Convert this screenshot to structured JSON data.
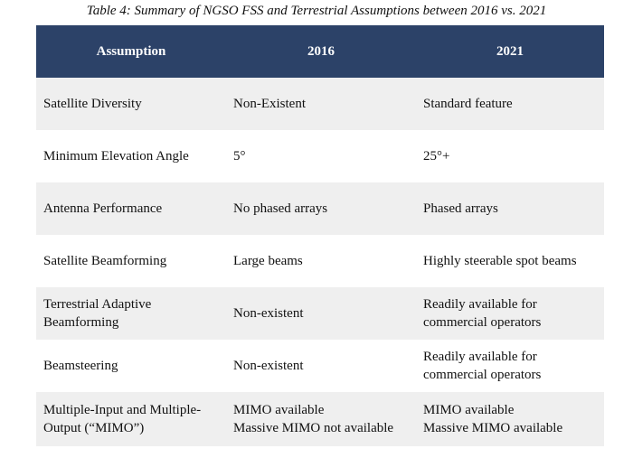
{
  "caption": "Table 4:  Summary of NGSO FSS and Terrestrial Assumptions between 2016 vs. 2021",
  "colors": {
    "header_bg": "#2c4268",
    "header_text": "#ffffff",
    "shaded_row": "#efefef"
  },
  "headers": [
    "Assumption",
    "2016",
    "2021"
  ],
  "rows": [
    {
      "assumption": [
        "Satellite Diversity"
      ],
      "y2016": [
        "Non-Existent"
      ],
      "y2021": [
        "Standard feature"
      ]
    },
    {
      "assumption": [
        "Minimum Elevation Angle"
      ],
      "y2016": [
        "5°"
      ],
      "y2021": [
        "25°+"
      ]
    },
    {
      "assumption": [
        "Antenna Performance"
      ],
      "y2016": [
        "No phased arrays"
      ],
      "y2021": [
        "Phased arrays"
      ]
    },
    {
      "assumption": [
        "Satellite Beamforming"
      ],
      "y2016": [
        "Large beams"
      ],
      "y2021": [
        "Highly steerable spot beams"
      ]
    },
    {
      "assumption": [
        "Terrestrial Adaptive",
        "Beamforming"
      ],
      "y2016": [
        "Non-existent"
      ],
      "y2021": [
        "Readily available for",
        "commercial operators"
      ]
    },
    {
      "assumption": [
        "Beamsteering"
      ],
      "y2016": [
        "Non-existent"
      ],
      "y2021": [
        "Readily available for",
        "commercial operators"
      ]
    },
    {
      "assumption": [
        "Multiple-Input and Multiple-",
        "Output (“MIMO”)"
      ],
      "y2016": [
        "MIMO available",
        "Massive MIMO not available"
      ],
      "y2021": [
        "MIMO available",
        "Massive MIMO available"
      ]
    }
  ]
}
